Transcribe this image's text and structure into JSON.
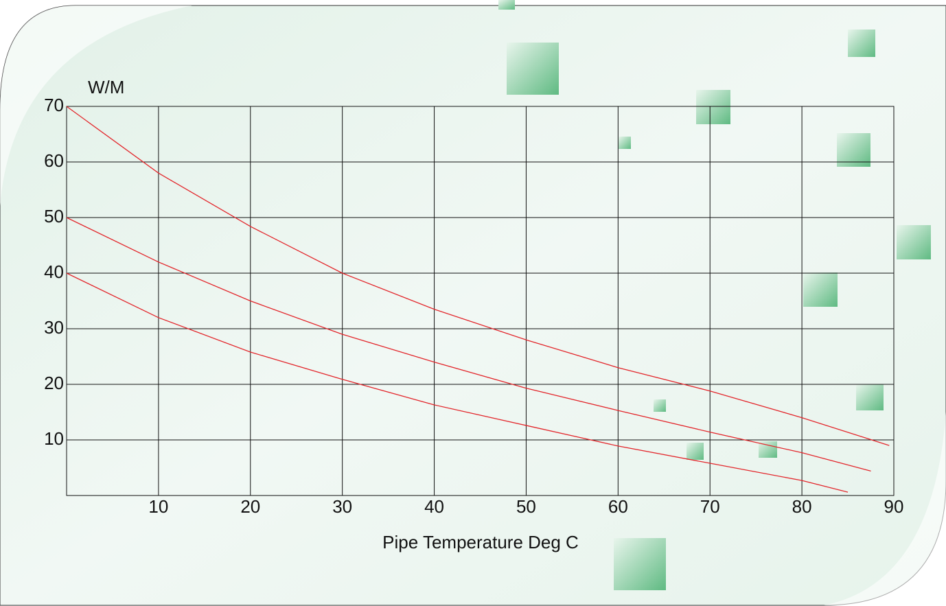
{
  "chart_data": {
    "type": "line",
    "ylabel": "W/M",
    "xlabel": "Pipe Temperature Deg C",
    "xlim": [
      0,
      90
    ],
    "xticks": [
      10,
      20,
      30,
      40,
      50,
      60,
      70,
      80,
      90
    ],
    "ylim": [
      0,
      70
    ],
    "yticks": [
      10,
      20,
      30,
      40,
      50,
      60,
      70
    ],
    "grid": true,
    "series": [
      {
        "color": "#e3262b",
        "x": [
          0,
          10,
          20,
          30,
          40,
          50,
          60,
          70,
          80,
          89.5
        ],
        "values": [
          70,
          58,
          48.4,
          40,
          33.5,
          28,
          23,
          18.8,
          14,
          9
        ]
      },
      {
        "color": "#e3262b",
        "x": [
          0,
          10,
          20,
          30,
          40,
          50,
          60,
          70,
          80,
          87.5
        ],
        "values": [
          50,
          42,
          35,
          29,
          24,
          19.3,
          15.3,
          11.4,
          7.7,
          4.4
        ]
      },
      {
        "color": "#e3262b",
        "x": [
          0,
          10,
          20,
          30,
          40,
          50,
          60,
          70,
          80,
          85
        ],
        "values": [
          40,
          32,
          25.8,
          20.9,
          16.3,
          12.6,
          8.9,
          5.8,
          2.7,
          0.6
        ]
      }
    ]
  }
}
